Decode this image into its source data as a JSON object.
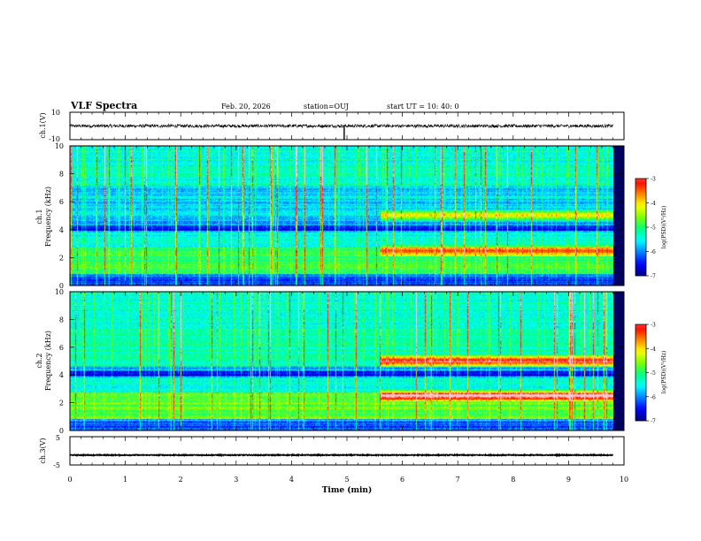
{
  "header": {
    "title": "VLF Spectra",
    "date": "Feb. 20, 2026",
    "station": "station=OUJ",
    "start": "start UT =  10: 40: 0"
  },
  "colors": {
    "colormap": [
      "#000080",
      "#0000ff",
      "#0080ff",
      "#00ffff",
      "#00ff80",
      "#80ff00",
      "#ffff00",
      "#ff8000",
      "#ff0000",
      "#ffc8c8",
      "#ffffff"
    ]
  },
  "chart_data": [
    {
      "type": "line",
      "ylabel": "ch.1(V)",
      "ylim": [
        -10,
        10
      ],
      "yticks": [
        "10",
        "-10"
      ],
      "baseline": 0,
      "noise_amplitude": 1.2,
      "spike": {
        "x": 4.95,
        "y": -10
      }
    },
    {
      "type": "heatmap",
      "ylabel_top": "ch.1",
      "ylabel_bottom": "Frequency (kHz)",
      "ylim": [
        0,
        10
      ],
      "yticks": [
        "0",
        "2",
        "4",
        "6",
        "8",
        "10"
      ],
      "xlim": [
        0,
        10
      ],
      "data_end_min": 9.8,
      "transition_min": 5.6,
      "bands_after": [
        2.5,
        5.0
      ],
      "colorbar": {
        "label": "log(PSD)(V²/Hz)",
        "range": [
          -7,
          -3
        ],
        "ticks": [
          "-3",
          "-4",
          "-5",
          "-6",
          "-7"
        ]
      }
    },
    {
      "type": "heatmap",
      "ylabel_top": "ch.2",
      "ylabel_bottom": "Frequency (kHz)",
      "ylim": [
        0,
        10
      ],
      "yticks": [
        "0",
        "2",
        "4",
        "6",
        "8",
        "10"
      ],
      "xlim": [
        0,
        10
      ],
      "data_end_min": 9.8,
      "transition_min": 5.6,
      "bands_after": [
        2.5,
        5.0
      ],
      "colorbar": {
        "label": "log(PSD)(V²/Hz)",
        "range": [
          -7,
          -3
        ],
        "ticks": [
          "-3",
          "-4",
          "-5",
          "-6",
          "-7"
        ]
      }
    },
    {
      "type": "line",
      "ylabel": "ch.3(V)",
      "ylim": [
        -5,
        5
      ],
      "yticks": [
        "5",
        "0",
        "-5"
      ],
      "baseline": -1.5,
      "noise_amplitude": 0.15
    }
  ],
  "xaxis": {
    "label": "Time (min)",
    "ticks": [
      "0",
      "1",
      "2",
      "3",
      "4",
      "5",
      "6",
      "7",
      "8",
      "9",
      "10"
    ],
    "range": [
      0,
      10
    ]
  }
}
